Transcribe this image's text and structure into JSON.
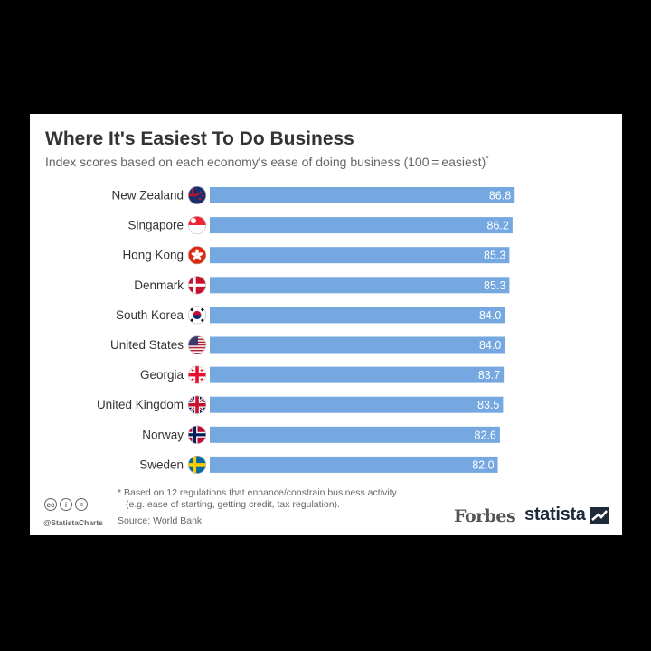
{
  "header": {
    "title": "Where It's Easiest To Do Business",
    "subtitle": "Index scores based on each economy's ease of doing business (100 = easiest)",
    "subtitle_mark": "*"
  },
  "footer": {
    "footnote_line1": "* Based on 12 regulations that enhance/constrain business activity",
    "footnote_line2": "(e.g. ease of starting, getting credit, tax regulation).",
    "source": "Source: World Bank",
    "handle": "@StatistaCharts",
    "cc_icons": [
      "creative-commons-icon",
      "attribution-icon",
      "no-derivatives-icon"
    ],
    "cc_glyphs": [
      "cc",
      "i",
      "="
    ],
    "brand_forbes": "Forbes",
    "brand_statista": "statista"
  },
  "colors": {
    "bar": "#75a8e0",
    "title": "#333333",
    "muted": "#666666"
  },
  "chart_data": {
    "type": "bar",
    "orientation": "horizontal",
    "title": "Where It's Easiest To Do Business",
    "subtitle": "Index scores based on each economy's ease of doing business (100 = easiest)*",
    "categories": [
      "New Zealand",
      "Singapore",
      "Hong Kong",
      "Denmark",
      "South Korea",
      "United States",
      "Georgia",
      "United Kingdom",
      "Norway",
      "Sweden"
    ],
    "values": [
      86.8,
      86.2,
      85.3,
      85.3,
      84.0,
      84.0,
      83.7,
      83.5,
      82.6,
      82.0
    ],
    "value_labels": [
      "86.8",
      "86.2",
      "85.3",
      "85.3",
      "84.0",
      "84.0",
      "83.7",
      "83.5",
      "82.6",
      "82.0"
    ],
    "flags": [
      "new-zealand-flag-icon",
      "singapore-flag-icon",
      "hong-kong-flag-icon",
      "denmark-flag-icon",
      "south-korea-flag-icon",
      "united-states-flag-icon",
      "georgia-flag-icon",
      "united-kingdom-flag-icon",
      "norway-flag-icon",
      "sweden-flag-icon"
    ],
    "xlabel": "",
    "ylabel": "",
    "xlim": [
      0,
      100
    ],
    "grid": false,
    "legend": "none",
    "data_labels": "inside-end"
  }
}
